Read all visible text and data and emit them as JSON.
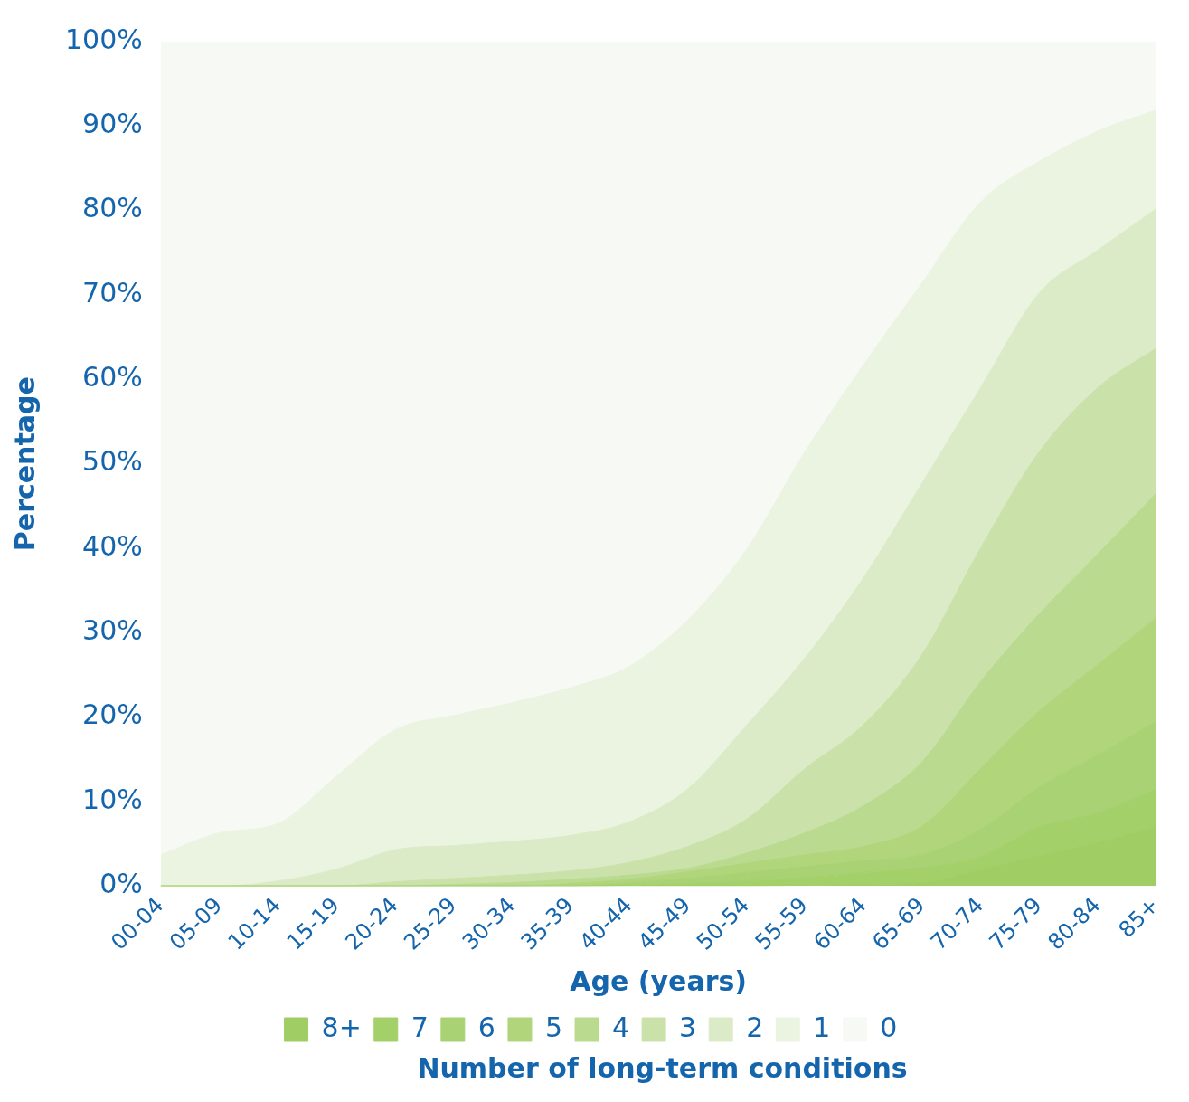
{
  "chart_data": {
    "type": "area",
    "xlabel": "Age (years)",
    "ylabel": "Percentage",
    "legend_title": "Number of long-term conditions",
    "categories": [
      "00-04",
      "05-09",
      "10-14",
      "15-19",
      "20-24",
      "25-29",
      "30-34",
      "35-39",
      "40-44",
      "45-49",
      "50-54",
      "55-59",
      "60-64",
      "65-69",
      "70-74",
      "75-79",
      "80-84",
      "85+"
    ],
    "stacked": true,
    "legend": "bottom",
    "ylim": [
      0,
      100
    ],
    "yticks": [
      {
        "value": 0,
        "label": "0%"
      },
      {
        "value": 10,
        "label": "10%"
      },
      {
        "value": 20,
        "label": "20%"
      },
      {
        "value": 30,
        "label": "30%"
      },
      {
        "value": 40,
        "label": "40%"
      },
      {
        "value": 50,
        "label": "50%"
      },
      {
        "value": 60,
        "label": "60%"
      },
      {
        "value": 70,
        "label": "70%"
      },
      {
        "value": 80,
        "label": "80%"
      },
      {
        "value": 90,
        "label": "90%"
      },
      {
        "value": 100,
        "label": "100%"
      }
    ],
    "series": [
      {
        "name": "8+",
        "color": "#a0ce64",
        "values": [
          0,
          0,
          0,
          0,
          0,
          0,
          0,
          0,
          0,
          0,
          0,
          0.1,
          0.2,
          0.4,
          2,
          3.6,
          5.2,
          7
        ]
      },
      {
        "name": "7",
        "color": "#a4d06a",
        "values": [
          0,
          0,
          0,
          0,
          0,
          0,
          0,
          0,
          0.1,
          0.3,
          0.6,
          0.9,
          1.4,
          1.8,
          1.5,
          3.4,
          3.5,
          4.5
        ]
      },
      {
        "name": "6",
        "color": "#a8d273",
        "values": [
          0,
          0,
          0,
          0,
          0,
          0,
          0,
          0,
          0.3,
          0.6,
          1.0,
          1.3,
          1.4,
          1.5,
          3.2,
          4.7,
          6.8,
          8.0
        ]
      },
      {
        "name": "5",
        "color": "#b0d57b",
        "values": [
          0,
          0,
          0,
          0,
          0,
          0,
          0,
          0.3,
          0.4,
          0.8,
          1.1,
          1.4,
          1.7,
          3.4,
          7.2,
          9.0,
          10.7,
          12.3
        ]
      },
      {
        "name": "4",
        "color": "#b9da8f",
        "values": [
          0,
          0,
          0,
          0,
          0,
          0.2,
          0.4,
          0.5,
          0.5,
          0.4,
          1.2,
          2.6,
          4.8,
          7.6,
          10.3,
          11.5,
          13.1,
          14.7
        ]
      },
      {
        "name": "3",
        "color": "#cae2aa",
        "values": [
          0,
          0,
          0,
          0,
          0.5,
          0.7,
          0.9,
          1.0,
          1.5,
          2.6,
          4.0,
          7.6,
          9.6,
          12.7,
          15.8,
          19.2,
          19.7,
          17.2
        ]
      },
      {
        "name": "2",
        "color": "#dcebc7",
        "values": [
          0,
          0,
          0.6,
          2.0,
          3.8,
          3.9,
          4.0,
          4.2,
          4.8,
          6.8,
          11.1,
          13.1,
          17.4,
          20.3,
          19.0,
          18.8,
          16.3,
          16.5
        ]
      },
      {
        "name": "1",
        "color": "#ebf4e1",
        "values": [
          3.7,
          6.3,
          6.8,
          11.0,
          14.2,
          15.4,
          16.4,
          17.5,
          18.4,
          20.0,
          20.8,
          24.4,
          25.2,
          23.7,
          22.0,
          15.6,
          14.1,
          11.7
        ]
      },
      {
        "name": "0",
        "color": "#f7f9f4",
        "values": [
          96.3,
          93.7,
          92.6,
          87.0,
          81.5,
          79.8,
          78.3,
          76.5,
          74.0,
          68.5,
          60.2,
          48.6,
          38.3,
          28.6,
          19.0,
          14.2,
          10.6,
          8.1
        ]
      }
    ]
  }
}
